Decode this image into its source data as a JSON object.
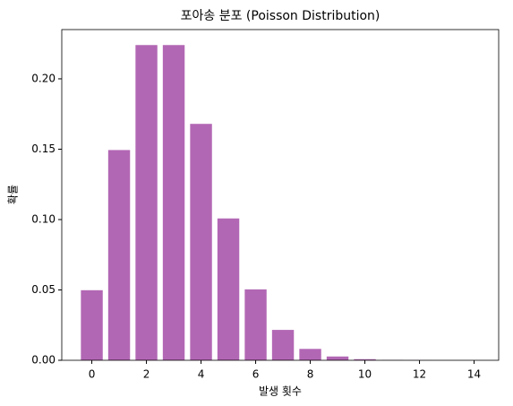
{
  "chart_data": {
    "type": "bar",
    "title": "포아송 분포 (Poisson Distribution)",
    "x_label": "발생 횟수",
    "y_label": "확률",
    "x": [
      0,
      1,
      2,
      3,
      4,
      5,
      6,
      7,
      8,
      9,
      10,
      11,
      12,
      13,
      14
    ],
    "values": [
      0.0498,
      0.1494,
      0.224,
      0.224,
      0.168,
      0.1008,
      0.0504,
      0.0216,
      0.0081,
      0.0027,
      0.0008,
      0.0002,
      6e-05,
      1e-05,
      3e-06
    ],
    "color": "#b267b4",
    "bar_width": 0.8,
    "xlim": [
      -1.1,
      14.9
    ],
    "xticks": [
      0,
      2,
      4,
      6,
      8,
      10,
      12,
      14
    ],
    "ylim": [
      0,
      0.235
    ],
    "yticks": [
      {
        "value": 0,
        "label": "0.00"
      },
      {
        "value": 0.05,
        "label": "0.05"
      },
      {
        "value": 0.1,
        "label": "0.10"
      },
      {
        "value": 0.15,
        "label": "0.15"
      },
      {
        "value": 0.2,
        "label": "0.20"
      }
    ],
    "grid": false
  }
}
